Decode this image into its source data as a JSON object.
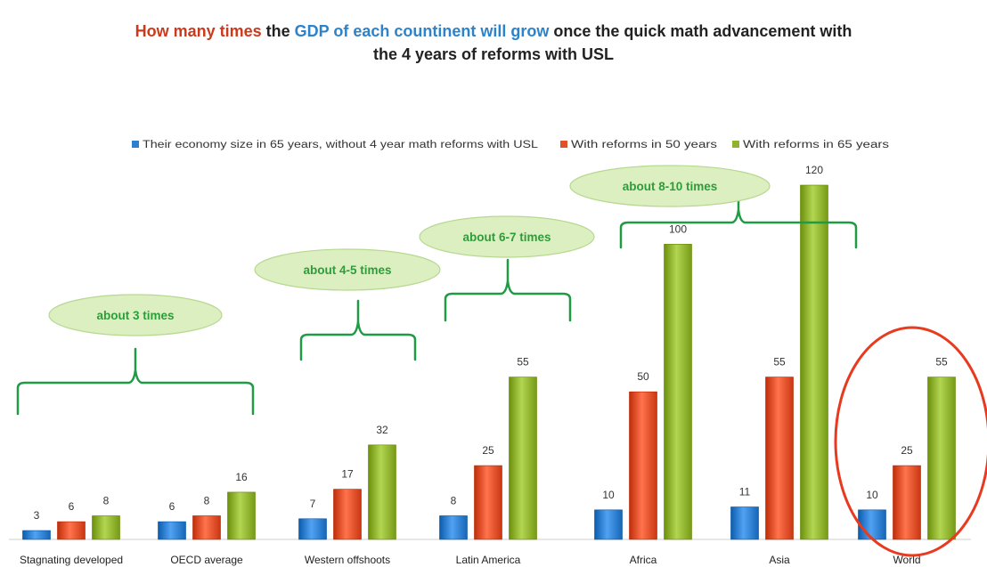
{
  "title": {
    "part1": "How many times",
    "part2": " the ",
    "part3": "GDP of each countinent will grow",
    "part4": " once the quick math advancement with",
    "line2": "the  4 years of reforms with USL"
  },
  "colors": {
    "series": [
      "#2f7fd0",
      "#e2502a",
      "#8fb32f"
    ],
    "callout_fill": "#dcefc0",
    "callout_text": "#2e9c3a",
    "bracket": "#1f9a45",
    "highlight_circle": "#e83a1f"
  },
  "chart_data": {
    "type": "bar",
    "categories": [
      "Stagnating developed",
      "OECD average",
      "Western offshoots",
      "Latin America",
      "Africa",
      "Asia",
      "World"
    ],
    "series": [
      {
        "name": "Their economy size in 65 years, without 4 year math reforms with USL",
        "values": [
          3,
          6,
          7,
          8,
          10,
          11,
          10
        ]
      },
      {
        "name": "With reforms in 50 years",
        "values": [
          6,
          8,
          17,
          25,
          50,
          55,
          25
        ]
      },
      {
        "name": "With reforms in 65 years",
        "values": [
          8,
          16,
          32,
          55,
          100,
          120,
          55
        ]
      }
    ],
    "ylim": [
      0,
      120
    ],
    "grid": false,
    "legend_position": "top",
    "annotations": [
      "about 3 times",
      "about 4-5 times",
      "about 6-7 times",
      "about 8-10 times"
    ]
  }
}
